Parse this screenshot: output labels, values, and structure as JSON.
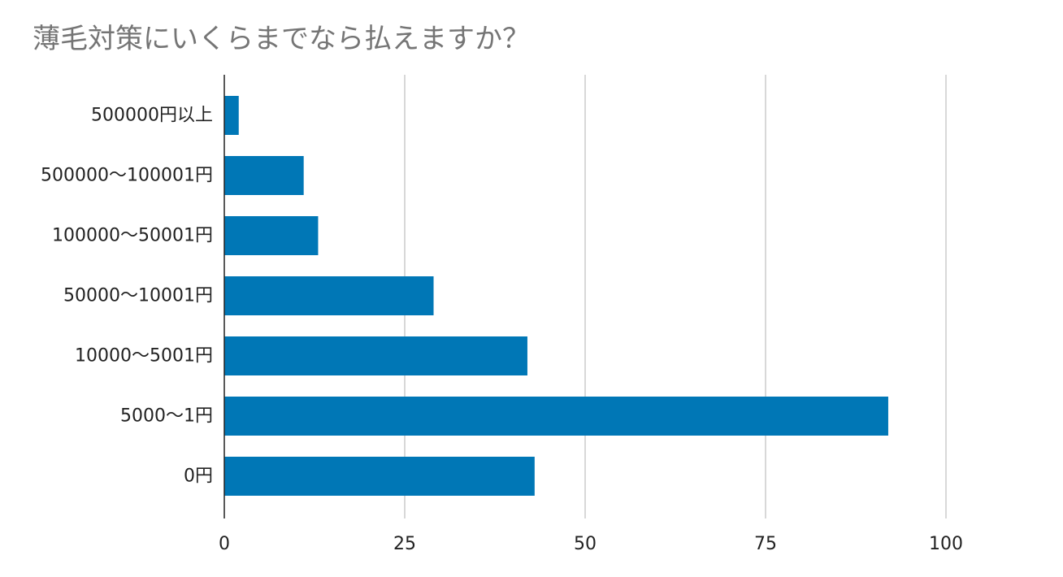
{
  "chart_data": {
    "type": "bar",
    "orientation": "horizontal",
    "title": "薄毛対策にいくらまでなら払えますか？",
    "categories": [
      "500000円以上",
      "500000～100001円",
      "100000～50001円",
      "50000～10001円",
      "10000～5001円",
      "5000～1円",
      "0円"
    ],
    "values": [
      2,
      11,
      13,
      29,
      42,
      92,
      43
    ],
    "xlim": [
      0,
      100
    ],
    "xticks": [
      "0",
      "25",
      "50",
      "75",
      "100"
    ],
    "xlabel": "",
    "ylabel": "",
    "grid": true,
    "legend": false,
    "colors": {
      "bar": "#0077b6",
      "grid": "#cccccc",
      "axis": "#222222",
      "title": "#757575"
    }
  }
}
